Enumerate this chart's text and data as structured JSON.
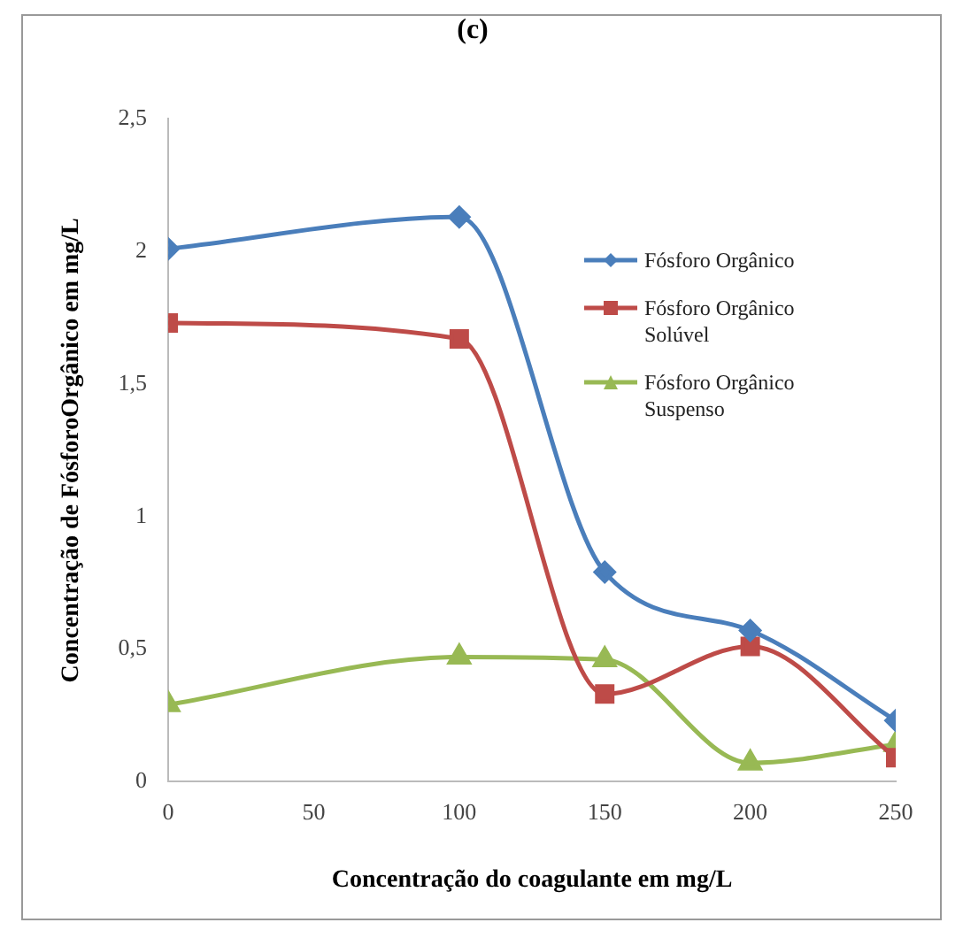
{
  "chart_data": {
    "type": "line",
    "title": "(c)",
    "xlabel": "Concentração do coagulante em mg/L",
    "ylabel": "Concentração de FósforoOrgânico em mg/L",
    "x": [
      0,
      100,
      150,
      200,
      250
    ],
    "xlim": [
      0,
      250
    ],
    "xticks": [
      0,
      50,
      100,
      150,
      200,
      250
    ],
    "ylim": [
      0,
      2.5
    ],
    "yticks": [
      {
        "value": 0,
        "label": "0"
      },
      {
        "value": 0.5,
        "label": "0,5"
      },
      {
        "value": 1,
        "label": "1"
      },
      {
        "value": 1.5,
        "label": "1,5"
      },
      {
        "value": 2,
        "label": "2"
      },
      {
        "value": 2.5,
        "label": "2,5"
      }
    ],
    "grid": false,
    "legend": "right",
    "series": [
      {
        "name": "Fósforo Orgânico",
        "color": "#4a7ebb",
        "marker": "diamond",
        "values": [
          2.01,
          2.13,
          0.79,
          0.57,
          0.23
        ]
      },
      {
        "name": "Fósforo Orgânico Solúvel",
        "color": "#be4b48",
        "marker": "square",
        "values": [
          1.73,
          1.67,
          0.33,
          0.51,
          0.09
        ]
      },
      {
        "name": "Fósforo Orgânico Suspenso",
        "color": "#98b954",
        "marker": "triangle",
        "values": [
          0.29,
          0.47,
          0.46,
          0.07,
          0.14
        ]
      }
    ]
  }
}
